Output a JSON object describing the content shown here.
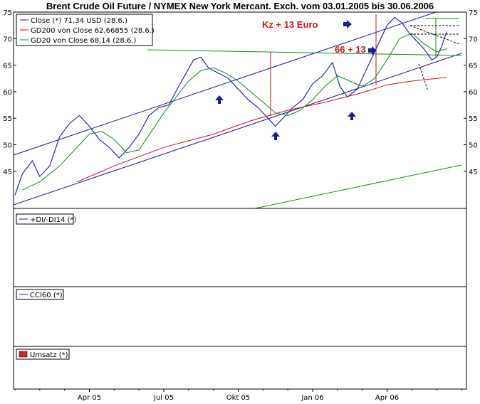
{
  "chart_data": {
    "type": "line",
    "title": "Brent Crude Oil Future / NYMEX New York Mercant. Exch. vom 03.01.2005 bis 30.06.2006",
    "ylim": [
      38,
      75
    ],
    "y_ticks": [
      "75",
      "70",
      "65",
      "60",
      "55",
      "50",
      "45"
    ],
    "x_ticks": [
      {
        "label": "Apr 05",
        "t": 3
      },
      {
        "label": "Jul 05",
        "t": 6
      },
      {
        "label": "Okt 05",
        "t": 9
      },
      {
        "label": "Jan 06",
        "t": 12
      },
      {
        "label": "Apr 06",
        "t": 15
      }
    ],
    "x_range": [
      0,
      18
    ],
    "series": [
      {
        "name": "Close (*) 71,34 USD (28.6.)",
        "color": "#1a1a9c",
        "points": [
          [
            0,
            40.5
          ],
          [
            0.3,
            44.5
          ],
          [
            0.7,
            47.0
          ],
          [
            1.0,
            44.0
          ],
          [
            1.4,
            46.0
          ],
          [
            1.8,
            51.5
          ],
          [
            2.2,
            54.0
          ],
          [
            2.6,
            55.5
          ],
          [
            3.0,
            53.5
          ],
          [
            3.4,
            51.0
          ],
          [
            3.8,
            49.5
          ],
          [
            4.2,
            47.5
          ],
          [
            4.6,
            49.5
          ],
          [
            5.0,
            52.0
          ],
          [
            5.4,
            55.5
          ],
          [
            5.8,
            57.0
          ],
          [
            6.2,
            57.5
          ],
          [
            6.6,
            61.0
          ],
          [
            6.9,
            63.5
          ],
          [
            7.2,
            66.0
          ],
          [
            7.5,
            66.5
          ],
          [
            7.8,
            64.5
          ],
          [
            8.2,
            63.5
          ],
          [
            8.6,
            62.5
          ],
          [
            9.0,
            60.5
          ],
          [
            9.4,
            58.5
          ],
          [
            9.8,
            57.0
          ],
          [
            10.2,
            55.0
          ],
          [
            10.5,
            53.5
          ],
          [
            10.8,
            55.0
          ],
          [
            11.2,
            57.0
          ],
          [
            11.6,
            58.5
          ],
          [
            12.0,
            61.5
          ],
          [
            12.4,
            63.0
          ],
          [
            12.8,
            65.5
          ],
          [
            13.1,
            61.0
          ],
          [
            13.4,
            59.0
          ],
          [
            13.8,
            60.5
          ],
          [
            14.1,
            63.5
          ],
          [
            14.4,
            66.5
          ],
          [
            14.7,
            69.5
          ],
          [
            15.0,
            72.5
          ],
          [
            15.3,
            74.0
          ],
          [
            15.6,
            73.0
          ],
          [
            15.9,
            71.0
          ],
          [
            16.2,
            69.5
          ],
          [
            16.5,
            68.0
          ],
          [
            16.8,
            66.0
          ],
          [
            17.0,
            66.5
          ],
          [
            17.2,
            68.5
          ],
          [
            17.4,
            71.3
          ]
        ]
      },
      {
        "name": "GD200 von Close 62,66855 (28.6.)",
        "color": "#c81414",
        "points": [
          [
            2.5,
            43.0
          ],
          [
            4.0,
            46.0
          ],
          [
            6.0,
            49.5
          ],
          [
            8.0,
            52.0
          ],
          [
            9.5,
            54.5
          ],
          [
            11.0,
            56.5
          ],
          [
            12.5,
            58.0
          ],
          [
            14.0,
            59.8
          ],
          [
            15.0,
            61.3
          ],
          [
            16.0,
            62.0
          ],
          [
            17.4,
            62.7
          ]
        ]
      },
      {
        "name": "GD20 von Close 68,14 (28.6.)",
        "color": "#148c14",
        "points": [
          [
            0.3,
            41.5
          ],
          [
            1.0,
            43.0
          ],
          [
            1.8,
            46.0
          ],
          [
            2.4,
            49.0
          ],
          [
            3.0,
            52.0
          ],
          [
            3.5,
            52.5
          ],
          [
            4.0,
            51.0
          ],
          [
            4.5,
            48.5
          ],
          [
            5.0,
            49.0
          ],
          [
            5.5,
            52.5
          ],
          [
            6.0,
            56.0
          ],
          [
            6.5,
            59.0
          ],
          [
            7.0,
            62.0
          ],
          [
            7.5,
            64.0
          ],
          [
            8.0,
            64.5
          ],
          [
            8.5,
            63.5
          ],
          [
            9.0,
            62.0
          ],
          [
            9.5,
            60.0
          ],
          [
            10.0,
            58.0
          ],
          [
            10.5,
            56.0
          ],
          [
            11.0,
            55.5
          ],
          [
            11.5,
            56.5
          ],
          [
            12.0,
            58.5
          ],
          [
            12.5,
            61.0
          ],
          [
            13.0,
            63.0
          ],
          [
            13.5,
            62.0
          ],
          [
            14.0,
            61.0
          ],
          [
            14.5,
            62.5
          ],
          [
            15.0,
            66.0
          ],
          [
            15.5,
            70.0
          ],
          [
            16.0,
            71.0
          ],
          [
            16.5,
            69.0
          ],
          [
            17.0,
            67.5
          ],
          [
            17.4,
            68.1
          ]
        ]
      }
    ],
    "annotations": [
      "Kz + 13 Euro",
      "66 + 13"
    ],
    "lower_panels": [
      "+DI/-DI14 (*)",
      "CCI60 (*)",
      "Umsatz (*)"
    ],
    "volume_color": "#e02020"
  }
}
